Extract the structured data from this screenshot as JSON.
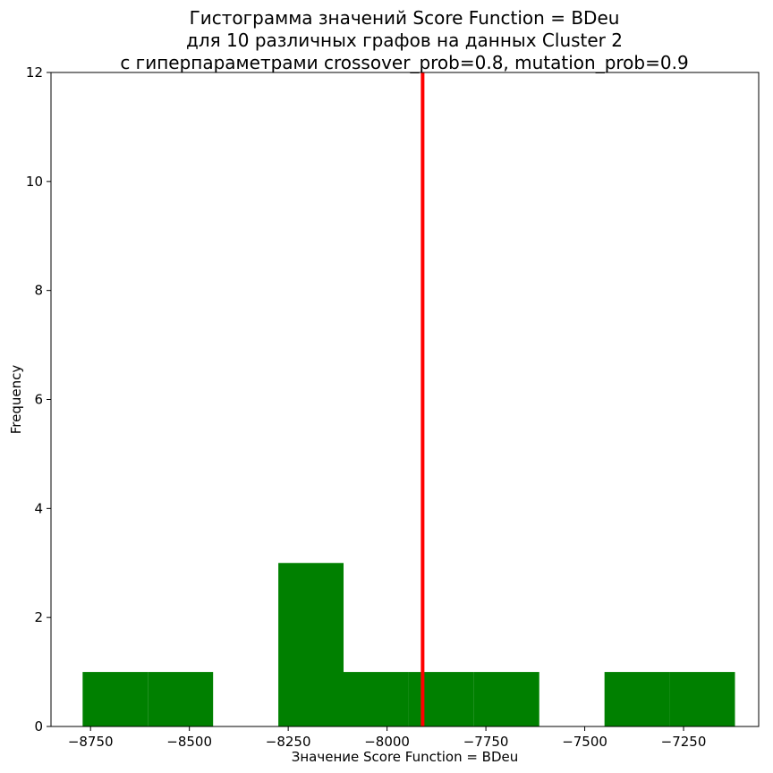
{
  "chart_data": {
    "type": "bar",
    "title_lines": [
      "Гистограмма значений Score Function = BDeu",
      "для 10 различных графов на данных Cluster 2",
      "с гиперпараметрами crossover_prob=0.8, mutation_prob=0.9"
    ],
    "xlabel": "Значение Score Function = BDeu",
    "ylabel": "Frequency",
    "xlim": [
      -8850,
      -7060
    ],
    "ylim": [
      0,
      12
    ],
    "xticks": [
      -8750,
      -8500,
      -8250,
      -8000,
      -7750,
      -7500,
      -7250
    ],
    "yticks": [
      0,
      2,
      4,
      6,
      8,
      10,
      12
    ],
    "bin_edges": [
      -8770,
      -8605,
      -8440,
      -8275,
      -8110,
      -7945,
      -7780,
      -7615,
      -7450,
      -7285,
      -7120
    ],
    "counts": [
      1,
      1,
      0,
      3,
      1,
      1,
      1,
      0,
      1,
      1
    ],
    "bar_color": "#008000",
    "vline": {
      "x": -7910,
      "color": "#ff0000"
    },
    "grid": false
  }
}
